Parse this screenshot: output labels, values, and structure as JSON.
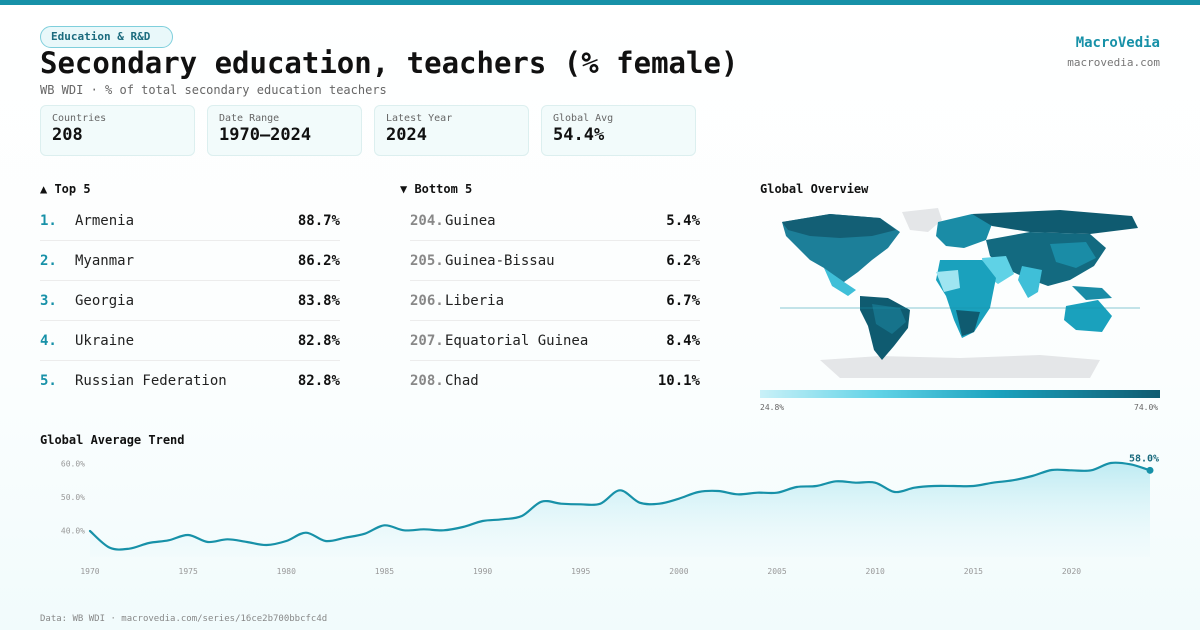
{
  "header": {
    "tag": "Education & R&D",
    "title": "Secondary education, teachers (% female)",
    "subtitle": "WB WDI · % of total secondary education teachers",
    "brand": "MacroVedia",
    "site": "macrovedia.com"
  },
  "stats": [
    {
      "label": "Countries",
      "value": "208"
    },
    {
      "label": "Date Range",
      "value": "1970–2024"
    },
    {
      "label": "Latest Year",
      "value": "2024"
    },
    {
      "label": "Global Avg",
      "value": "54.4%"
    }
  ],
  "top5": {
    "title": "▲ Top 5",
    "items": [
      {
        "rank": "1.",
        "name": "Armenia",
        "value": "88.7%"
      },
      {
        "rank": "2.",
        "name": "Myanmar",
        "value": "86.2%"
      },
      {
        "rank": "3.",
        "name": "Georgia",
        "value": "83.8%"
      },
      {
        "rank": "4.",
        "name": "Ukraine",
        "value": "82.8%"
      },
      {
        "rank": "5.",
        "name": "Russian Federation",
        "value": "82.8%"
      }
    ]
  },
  "bottom5": {
    "title": "▼ Bottom 5",
    "items": [
      {
        "rank": "204.",
        "name": "Guinea",
        "value": "5.4%"
      },
      {
        "rank": "205.",
        "name": "Guinea-Bissau",
        "value": "6.2%"
      },
      {
        "rank": "206.",
        "name": "Liberia",
        "value": "6.7%"
      },
      {
        "rank": "207.",
        "name": "Equatorial Guinea",
        "value": "8.4%"
      },
      {
        "rank": "208.",
        "name": "Chad",
        "value": "10.1%"
      }
    ]
  },
  "map": {
    "title": "Global Overview",
    "legend_min": "24.8%",
    "legend_max": "74.0%",
    "colors": {
      "low": "#c9f1f8",
      "mid": "#1aa1bd",
      "high": "#0f5b70",
      "nodata": "#e4e6e8"
    }
  },
  "chart_data": {
    "type": "line",
    "title": "Global Average Trend",
    "x": [
      1970,
      1971,
      1972,
      1973,
      1974,
      1975,
      1976,
      1977,
      1978,
      1979,
      1980,
      1981,
      1982,
      1983,
      1984,
      1985,
      1986,
      1987,
      1988,
      1989,
      1990,
      1991,
      1992,
      1993,
      1994,
      1995,
      1996,
      1997,
      1998,
      1999,
      2000,
      2001,
      2002,
      2003,
      2004,
      2005,
      2006,
      2007,
      2008,
      2009,
      2010,
      2011,
      2012,
      2013,
      2014,
      2015,
      2016,
      2017,
      2018,
      2019,
      2020,
      2021,
      2022,
      2023,
      2024
    ],
    "y": [
      39.8,
      34.8,
      34.5,
      36.2,
      37.0,
      38.6,
      36.5,
      37.3,
      36.5,
      35.6,
      36.8,
      39.3,
      36.8,
      37.8,
      39.0,
      41.5,
      40.0,
      40.3,
      40.0,
      41.0,
      42.8,
      43.3,
      44.3,
      48.6,
      48.0,
      47.8,
      48.0,
      52.0,
      48.3,
      48.0,
      49.5,
      51.5,
      51.8,
      50.8,
      51.3,
      51.3,
      53.0,
      53.3,
      54.7,
      54.3,
      54.3,
      51.5,
      52.8,
      53.3,
      53.3,
      53.3,
      54.3,
      55.0,
      56.3,
      58.1,
      58.0,
      58.0,
      60.2,
      59.8,
      58.0
    ],
    "y_ticks": [
      "40.0%",
      "50.0%",
      "60.0%"
    ],
    "y_tick_values": [
      40,
      50,
      60
    ],
    "x_ticks": [
      "1970",
      "1975",
      "1980",
      "1985",
      "1990",
      "1995",
      "2000",
      "2005",
      "2010",
      "2015",
      "2020"
    ],
    "x_tick_values": [
      1970,
      1975,
      1980,
      1985,
      1990,
      1995,
      2000,
      2005,
      2010,
      2015,
      2020
    ],
    "last_label": "58.0%",
    "ylim": [
      32,
      62
    ],
    "xlim": [
      1970,
      2024
    ],
    "grid": false,
    "line_color": "#1791a8"
  },
  "footer": "Data: WB WDI · macrovedia.com/series/16ce2b700bbcfc4d"
}
